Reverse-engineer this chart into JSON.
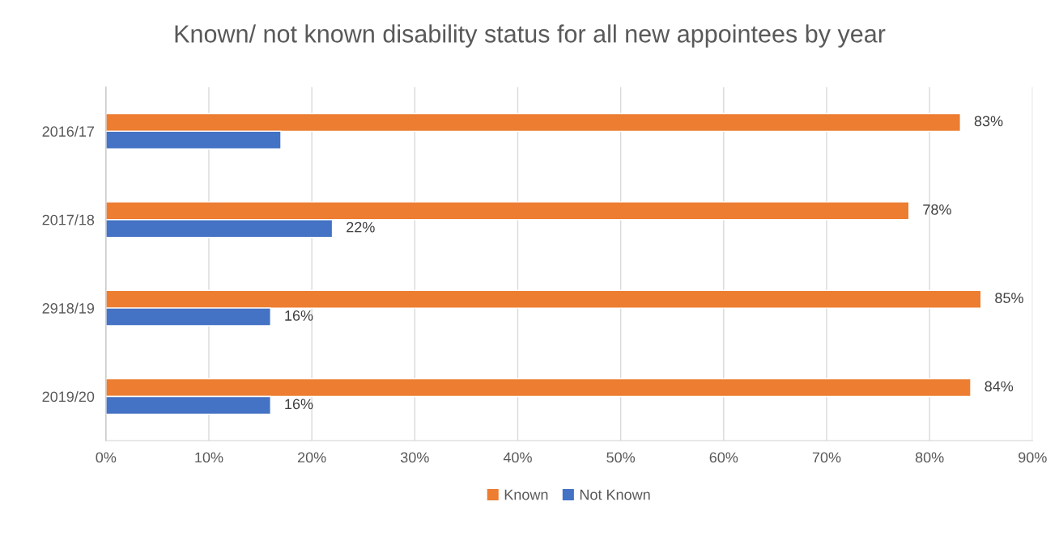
{
  "chart_data": {
    "type": "bar",
    "orientation": "horizontal",
    "title": "Known/ not known disability status for all new appointees by year",
    "categories": [
      "2016/17",
      "2017/18",
      "2918/19",
      "2019/20"
    ],
    "series": [
      {
        "name": "Known",
        "color": "#ed7d31",
        "values": [
          83,
          78,
          85,
          84
        ],
        "value_labels": [
          "83%",
          "78%",
          "85%",
          "84%"
        ]
      },
      {
        "name": "Not Known",
        "color": "#4472c4",
        "values": [
          17,
          22,
          16,
          16
        ],
        "value_labels": [
          null,
          "22%",
          "16%",
          "16%"
        ]
      }
    ],
    "xlim": [
      0,
      90
    ],
    "xticks": [
      {
        "value": 0,
        "label": "0%"
      },
      {
        "value": 10,
        "label": "10%"
      },
      {
        "value": 20,
        "label": "20%"
      },
      {
        "value": 30,
        "label": "30%"
      },
      {
        "value": 40,
        "label": "40%"
      },
      {
        "value": 50,
        "label": "50%"
      },
      {
        "value": 60,
        "label": "60%"
      },
      {
        "value": 70,
        "label": "70%"
      },
      {
        "value": 80,
        "label": "80%"
      },
      {
        "value": 90,
        "label": "90%"
      }
    ],
    "grid": "x",
    "legend": "bottom"
  }
}
